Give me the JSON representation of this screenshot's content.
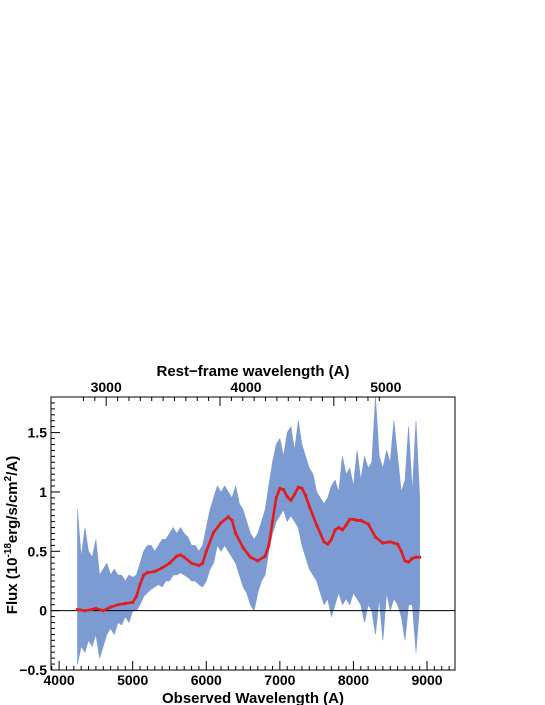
{
  "chart_data": {
    "type": "line",
    "title": "",
    "xlabel": "Observed Wavelength (A)",
    "ylabel_parts": [
      "Flux (10",
      "-18",
      "erg/s/cm",
      "2",
      "/A)"
    ],
    "top_axis_label": "Rest−frame wavelength (A)",
    "xlim": [
      3890,
      9380
    ],
    "ylim": [
      -0.5,
      1.8
    ],
    "x_ticks": [
      4000,
      5000,
      6000,
      7000,
      8000,
      9000
    ],
    "x_tick_labels": [
      "4000",
      "5000",
      "6000",
      "7000",
      "8000",
      "9000"
    ],
    "y_ticks": [
      -0.5,
      0,
      0.5,
      1,
      1.5
    ],
    "y_tick_labels": [
      "−0.5",
      "0",
      "0.5",
      "1",
      "1.5"
    ],
    "top_ticks_observed": [
      4640,
      6540,
      8440
    ],
    "top_tick_labels": [
      "3000",
      "4000",
      "5000"
    ],
    "zero_line": 0,
    "grid": false,
    "series": [
      {
        "role": "observed spectrum",
        "color": "#7b9bd2",
        "x": [
          4250,
          4300,
          4350,
          4400,
          4450,
          4500,
          4550,
          4600,
          4650,
          4700,
          4750,
          4800,
          4850,
          4900,
          4950,
          5000,
          5050,
          5100,
          5150,
          5200,
          5250,
          5300,
          5350,
          5400,
          5450,
          5500,
          5550,
          5600,
          5650,
          5700,
          5750,
          5800,
          5850,
          5900,
          5950,
          6000,
          6050,
          6100,
          6150,
          6200,
          6250,
          6300,
          6350,
          6400,
          6450,
          6500,
          6550,
          6600,
          6650,
          6700,
          6750,
          6800,
          6850,
          6900,
          6950,
          7000,
          7050,
          7100,
          7150,
          7200,
          7250,
          7300,
          7350,
          7400,
          7450,
          7500,
          7550,
          7600,
          7650,
          7700,
          7750,
          7800,
          7850,
          7900,
          7950,
          8000,
          8050,
          8100,
          8150,
          8200,
          8250,
          8300,
          8350,
          8400,
          8450,
          8500,
          8550,
          8600,
          8650,
          8700,
          8750,
          8800,
          8850,
          8900
        ],
        "y_low": [
          -0.45,
          -0.3,
          -0.35,
          -0.25,
          -0.3,
          -0.2,
          -0.4,
          -0.3,
          -0.2,
          -0.15,
          -0.2,
          -0.1,
          -0.12,
          -0.05,
          -0.1,
          0.0,
          0.0,
          0.05,
          0.12,
          0.15,
          0.18,
          0.2,
          0.22,
          0.2,
          0.25,
          0.25,
          0.3,
          0.3,
          0.32,
          0.3,
          0.28,
          0.25,
          0.25,
          0.22,
          0.2,
          0.25,
          0.35,
          0.4,
          0.55,
          0.5,
          0.55,
          0.5,
          0.45,
          0.4,
          0.3,
          0.2,
          0.15,
          0.05,
          0.0,
          0.15,
          0.25,
          0.3,
          0.5,
          0.65,
          0.75,
          0.8,
          0.85,
          0.75,
          0.8,
          0.75,
          0.7,
          0.55,
          0.45,
          0.35,
          0.3,
          0.25,
          0.15,
          0.05,
          0.1,
          -0.05,
          0.05,
          0.15,
          0.05,
          0.1,
          0.05,
          0.15,
          0.1,
          0.05,
          -0.1,
          0.05,
          0.0,
          -0.2,
          0.1,
          -0.25,
          0.15,
          0.0,
          0.1,
          0.05,
          -0.05,
          -0.25,
          0.05,
          0.05,
          -0.35,
          0.05
        ],
        "y_high": [
          0.85,
          0.45,
          0.7,
          0.5,
          0.45,
          0.6,
          0.3,
          0.35,
          0.4,
          0.3,
          0.35,
          0.3,
          0.3,
          0.25,
          0.3,
          0.28,
          0.3,
          0.4,
          0.5,
          0.55,
          0.55,
          0.5,
          0.55,
          0.6,
          0.6,
          0.65,
          0.7,
          0.65,
          0.7,
          0.65,
          0.62,
          0.55,
          0.55,
          0.5,
          0.55,
          0.7,
          0.85,
          0.95,
          1.05,
          1.0,
          1.05,
          1.0,
          0.95,
          1.05,
          0.9,
          0.85,
          0.75,
          0.65,
          0.6,
          0.65,
          0.75,
          0.85,
          1.05,
          1.25,
          1.4,
          1.45,
          1.3,
          1.5,
          1.55,
          1.35,
          1.6,
          1.4,
          1.3,
          1.2,
          1.15,
          1.0,
          0.95,
          0.9,
          0.95,
          1.05,
          1.1,
          1.0,
          1.3,
          1.15,
          1.2,
          1.05,
          1.35,
          1.1,
          1.3,
          1.2,
          1.25,
          1.8,
          1.3,
          1.2,
          1.35,
          1.25,
          1.6,
          1.3,
          1.0,
          1.1,
          1.55,
          1.0,
          1.6,
          0.95
        ]
      },
      {
        "role": "smoothed fit",
        "color": "#e51a1a",
        "x": [
          4250,
          4350,
          4450,
          4500,
          4600,
          4700,
          4800,
          4900,
          5000,
          5050,
          5100,
          5150,
          5200,
          5300,
          5400,
          5500,
          5600,
          5650,
          5700,
          5800,
          5900,
          5950,
          6000,
          6100,
          6200,
          6300,
          6350,
          6400,
          6500,
          6600,
          6700,
          6800,
          6850,
          6900,
          6950,
          7000,
          7050,
          7100,
          7150,
          7200,
          7250,
          7300,
          7350,
          7400,
          7500,
          7600,
          7650,
          7700,
          7750,
          7800,
          7850,
          7900,
          7950,
          8000,
          8050,
          8100,
          8200,
          8300,
          8400,
          8500,
          8550,
          8600,
          8650,
          8700,
          8750,
          8800,
          8850,
          8900
        ],
        "y": [
          0.01,
          0.0,
          0.01,
          0.02,
          0.0,
          0.03,
          0.05,
          0.06,
          0.07,
          0.12,
          0.22,
          0.3,
          0.32,
          0.33,
          0.36,
          0.4,
          0.46,
          0.47,
          0.45,
          0.4,
          0.38,
          0.4,
          0.5,
          0.66,
          0.74,
          0.79,
          0.76,
          0.65,
          0.53,
          0.45,
          0.42,
          0.46,
          0.55,
          0.75,
          0.95,
          1.03,
          1.02,
          0.96,
          0.93,
          0.98,
          1.04,
          1.03,
          0.97,
          0.88,
          0.72,
          0.58,
          0.56,
          0.6,
          0.68,
          0.7,
          0.68,
          0.72,
          0.77,
          0.77,
          0.76,
          0.76,
          0.73,
          0.62,
          0.57,
          0.58,
          0.57,
          0.56,
          0.5,
          0.42,
          0.41,
          0.44,
          0.45,
          0.45
        ]
      }
    ]
  }
}
